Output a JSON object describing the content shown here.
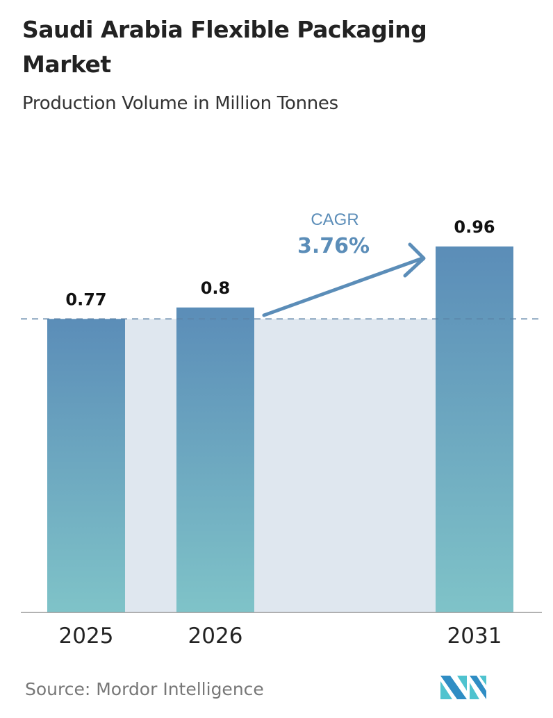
{
  "chart_data": {
    "type": "bar",
    "title": "Saudi Arabia Flexible Packaging Market",
    "subtitle": "Production Volume in Million Tonnes",
    "categories": [
      "2025",
      "2026",
      "2031"
    ],
    "values": [
      0.77,
      0.8,
      0.96
    ],
    "data_labels": [
      "0.77",
      "0.8",
      "0.96"
    ],
    "annotation": {
      "label": "CAGR",
      "value": "3.76%"
    },
    "ylim": [
      0,
      0.96
    ],
    "grid": false,
    "colors": {
      "bar_top": "#5b8db8",
      "bar_bottom": "#7fc3c8",
      "band": "#dfe7ef",
      "dashed": "#5b82a6",
      "annotation": "#5b8db8"
    }
  },
  "source": "Source:  Mordor Intelligence",
  "logo": {
    "icon": "mordor-intelligence-logo",
    "text": "Mordor Intelligence"
  }
}
